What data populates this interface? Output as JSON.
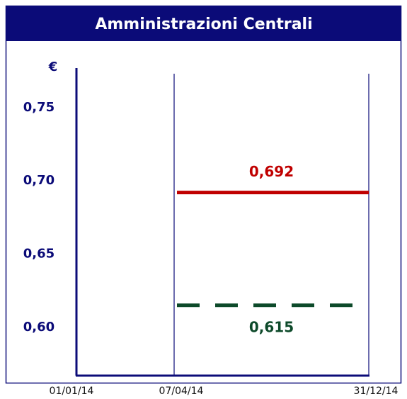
{
  "chart_data": {
    "type": "line",
    "title": "Amministrazioni Centrali",
    "y_label": "€",
    "categories": [
      "01/01/14",
      "07/04/14",
      "31/12/14"
    ],
    "ylim": [
      0.567,
      0.777
    ],
    "yticks": [
      {
        "value": 0.6,
        "label": "0,60"
      },
      {
        "value": 0.65,
        "label": "0,65"
      },
      {
        "value": 0.7,
        "label": "0,70"
      },
      {
        "value": 0.75,
        "label": "0,75"
      }
    ],
    "series": [
      {
        "color": "#c00000",
        "dashed": false,
        "values": [
          null,
          0.692,
          0.692
        ],
        "value_labels": [
          null,
          "0,692",
          null
        ]
      },
      {
        "color": "#0d4a2a",
        "dashed": true,
        "values": [
          null,
          0.615,
          0.615
        ],
        "value_labels": [
          null,
          "0,615",
          null
        ]
      }
    ]
  }
}
